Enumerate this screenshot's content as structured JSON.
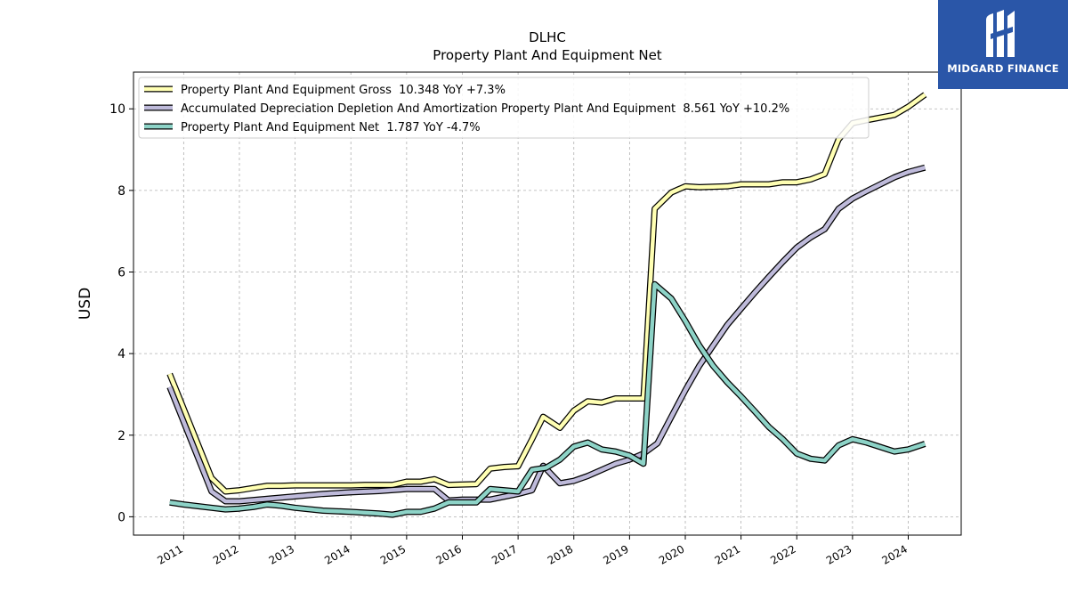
{
  "brand": {
    "name": "MIDGARD FINANCE",
    "bg_color": "#2a56a8",
    "icon": "midgard-logo-icon"
  },
  "chart_data": {
    "type": "line",
    "title": "DLHC",
    "subtitle": "Property Plant And Equipment Net",
    "xlabel": "",
    "ylabel": "USD",
    "xlim": [
      2010.1,
      2024.95
    ],
    "ylim": [
      -0.45,
      10.9
    ],
    "x_ticks": [
      2011,
      2012,
      2013,
      2014,
      2015,
      2016,
      2017,
      2018,
      2019,
      2020,
      2021,
      2022,
      2023,
      2024
    ],
    "y_ticks": [
      0,
      2,
      4,
      6,
      8,
      10
    ],
    "grid": true,
    "legend_position": "top-left",
    "series": [
      {
        "name": "Property Plant And Equipment Gross  10.348 YoY +7.3%",
        "color": "#ffffb3",
        "points": [
          [
            2010.75,
            3.5
          ],
          [
            2011.5,
            0.95
          ],
          [
            2011.75,
            0.62
          ],
          [
            2012.0,
            0.65
          ],
          [
            2012.5,
            0.76
          ],
          [
            2012.75,
            0.76
          ],
          [
            2013.0,
            0.77
          ],
          [
            2013.5,
            0.77
          ],
          [
            2014.0,
            0.77
          ],
          [
            2014.25,
            0.78
          ],
          [
            2014.75,
            0.78
          ],
          [
            2015.0,
            0.86
          ],
          [
            2015.25,
            0.86
          ],
          [
            2015.5,
            0.92
          ],
          [
            2015.75,
            0.78
          ],
          [
            2016.25,
            0.8
          ],
          [
            2016.5,
            1.18
          ],
          [
            2016.75,
            1.22
          ],
          [
            2017.0,
            1.24
          ],
          [
            2017.25,
            1.9
          ],
          [
            2017.45,
            2.45
          ],
          [
            2017.75,
            2.18
          ],
          [
            2018.0,
            2.6
          ],
          [
            2018.25,
            2.83
          ],
          [
            2018.5,
            2.8
          ],
          [
            2018.75,
            2.9
          ],
          [
            2019.0,
            2.9
          ],
          [
            2019.25,
            2.9
          ],
          [
            2019.45,
            7.55
          ],
          [
            2019.75,
            7.95
          ],
          [
            2020.0,
            8.1
          ],
          [
            2020.25,
            8.08
          ],
          [
            2020.75,
            8.1
          ],
          [
            2021.0,
            8.15
          ],
          [
            2021.5,
            8.15
          ],
          [
            2021.75,
            8.2
          ],
          [
            2022.0,
            8.2
          ],
          [
            2022.25,
            8.27
          ],
          [
            2022.5,
            8.4
          ],
          [
            2022.75,
            9.25
          ],
          [
            2023.0,
            9.65
          ],
          [
            2023.25,
            9.72
          ],
          [
            2023.75,
            9.85
          ],
          [
            2024.0,
            10.05
          ],
          [
            2024.3,
            10.348
          ]
        ]
      },
      {
        "name": "Accumulated Depreciation Depletion And Amortization Property Plant And Equipment  8.561 YoY +10.2%",
        "color": "#bebada",
        "points": [
          [
            2010.75,
            3.18
          ],
          [
            2011.5,
            0.62
          ],
          [
            2011.75,
            0.38
          ],
          [
            2012.0,
            0.38
          ],
          [
            2012.5,
            0.44
          ],
          [
            2013.0,
            0.5
          ],
          [
            2013.5,
            0.56
          ],
          [
            2014.0,
            0.6
          ],
          [
            2014.5,
            0.63
          ],
          [
            2015.0,
            0.68
          ],
          [
            2015.5,
            0.68
          ],
          [
            2015.75,
            0.4
          ],
          [
            2016.0,
            0.42
          ],
          [
            2016.25,
            0.42
          ],
          [
            2016.5,
            0.42
          ],
          [
            2017.0,
            0.56
          ],
          [
            2017.25,
            0.65
          ],
          [
            2017.45,
            1.25
          ],
          [
            2017.75,
            0.82
          ],
          [
            2018.0,
            0.88
          ],
          [
            2018.25,
            1.0
          ],
          [
            2018.5,
            1.15
          ],
          [
            2018.75,
            1.3
          ],
          [
            2019.0,
            1.4
          ],
          [
            2019.25,
            1.55
          ],
          [
            2019.5,
            1.8
          ],
          [
            2019.75,
            2.45
          ],
          [
            2020.0,
            3.1
          ],
          [
            2020.25,
            3.7
          ],
          [
            2020.5,
            4.2
          ],
          [
            2020.75,
            4.7
          ],
          [
            2021.0,
            5.1
          ],
          [
            2021.25,
            5.5
          ],
          [
            2021.5,
            5.88
          ],
          [
            2021.75,
            6.25
          ],
          [
            2022.0,
            6.6
          ],
          [
            2022.25,
            6.85
          ],
          [
            2022.5,
            7.05
          ],
          [
            2022.75,
            7.55
          ],
          [
            2023.0,
            7.8
          ],
          [
            2023.25,
            7.98
          ],
          [
            2023.75,
            8.32
          ],
          [
            2024.0,
            8.45
          ],
          [
            2024.3,
            8.561
          ]
        ]
      },
      {
        "name": "Property Plant And Equipment Net  1.787 YoY -4.7%",
        "color": "#8dd3c7",
        "points": [
          [
            2010.75,
            0.35
          ],
          [
            2011.0,
            0.3
          ],
          [
            2011.5,
            0.22
          ],
          [
            2011.75,
            0.18
          ],
          [
            2012.0,
            0.2
          ],
          [
            2012.25,
            0.24
          ],
          [
            2012.5,
            0.3
          ],
          [
            2012.75,
            0.27
          ],
          [
            2013.0,
            0.22
          ],
          [
            2013.5,
            0.15
          ],
          [
            2014.0,
            0.12
          ],
          [
            2014.5,
            0.08
          ],
          [
            2014.75,
            0.05
          ],
          [
            2015.0,
            0.12
          ],
          [
            2015.25,
            0.12
          ],
          [
            2015.5,
            0.2
          ],
          [
            2015.75,
            0.35
          ],
          [
            2016.0,
            0.35
          ],
          [
            2016.25,
            0.35
          ],
          [
            2016.5,
            0.68
          ],
          [
            2016.75,
            0.65
          ],
          [
            2017.0,
            0.62
          ],
          [
            2017.25,
            1.15
          ],
          [
            2017.5,
            1.2
          ],
          [
            2017.75,
            1.4
          ],
          [
            2018.0,
            1.72
          ],
          [
            2018.25,
            1.82
          ],
          [
            2018.5,
            1.65
          ],
          [
            2018.75,
            1.6
          ],
          [
            2019.0,
            1.5
          ],
          [
            2019.25,
            1.3
          ],
          [
            2019.45,
            5.7
          ],
          [
            2019.75,
            5.35
          ],
          [
            2020.0,
            4.8
          ],
          [
            2020.25,
            4.2
          ],
          [
            2020.5,
            3.7
          ],
          [
            2020.75,
            3.3
          ],
          [
            2021.0,
            2.95
          ],
          [
            2021.25,
            2.58
          ],
          [
            2021.5,
            2.2
          ],
          [
            2021.75,
            1.9
          ],
          [
            2022.0,
            1.55
          ],
          [
            2022.25,
            1.42
          ],
          [
            2022.5,
            1.38
          ],
          [
            2022.75,
            1.75
          ],
          [
            2023.0,
            1.9
          ],
          [
            2023.25,
            1.82
          ],
          [
            2023.75,
            1.6
          ],
          [
            2024.0,
            1.65
          ],
          [
            2024.3,
            1.787
          ]
        ]
      }
    ]
  }
}
